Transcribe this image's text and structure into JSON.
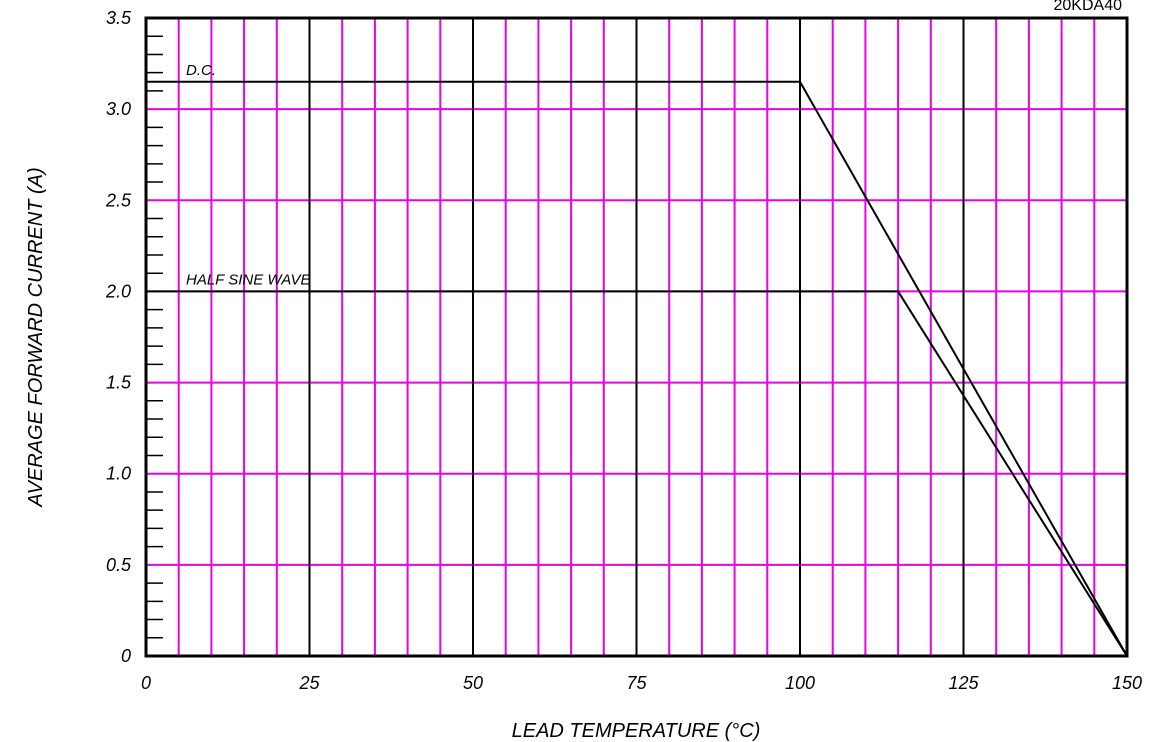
{
  "chart_data": {
    "type": "line",
    "figure_id": "20KDA40",
    "title": "",
    "xlabel": "LEAD TEMPERATURE (°C)",
    "ylabel": "AVERAGE FORWARD CURRENT (A)",
    "xlim": [
      0,
      150
    ],
    "ylim": [
      0,
      3.5
    ],
    "x_ticks": [
      0,
      25,
      50,
      75,
      100,
      125,
      150
    ],
    "x_tick_labels": [
      "0",
      "25",
      "50",
      "75",
      "100",
      "125",
      "150"
    ],
    "y_ticks": [
      0,
      0.5,
      1.0,
      1.5,
      2.0,
      2.5,
      3.0,
      3.5
    ],
    "y_tick_labels": [
      "0",
      "0.5",
      "1.0",
      "1.5",
      "2.0",
      "2.5",
      "3.0",
      "3.5"
    ],
    "x_minor_step": 5,
    "y_minor_step": 0.1,
    "grid": true,
    "legend": "none",
    "series": [
      {
        "name": "D.C.",
        "x": [
          0,
          100,
          150
        ],
        "y": [
          3.15,
          3.15,
          0
        ]
      },
      {
        "name": "HALF SINE WAVE",
        "x": [
          0,
          115,
          150
        ],
        "y": [
          2.0,
          2.0,
          0
        ]
      }
    ]
  },
  "colors": {
    "minor_grid": "#e800e8",
    "major_grid": "#000000",
    "series": "#000000",
    "background": "#ffffff"
  }
}
